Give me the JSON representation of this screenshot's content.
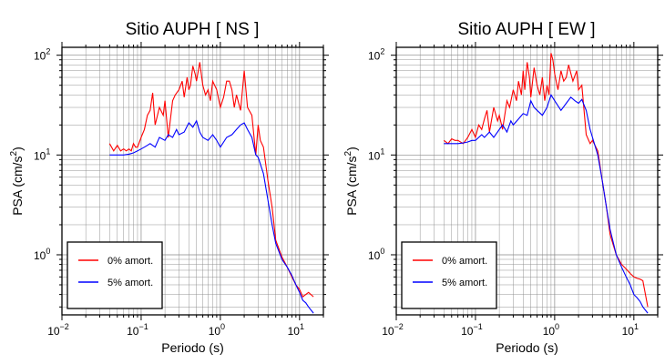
{
  "colors": {
    "series_0": "#ff0000",
    "series_5": "#0000ff",
    "grid": "#888888",
    "frame": "#000000"
  },
  "chart_data": [
    {
      "type": "line",
      "title": "Sitio AUPH [ NS ]",
      "xlabel": "Periodo (s)",
      "ylabel_main": "PSA (cm/s",
      "ylabel_sup": "2",
      "ylabel_close": ")",
      "xscale": "log",
      "yscale": "log",
      "xlim": [
        0.01,
        20
      ],
      "ylim": [
        0.25,
        120
      ],
      "grid": true,
      "legend_position": "bottom-left",
      "x_ticks": [
        {
          "value": 0.01,
          "base": "10",
          "exp": "−2"
        },
        {
          "value": 0.1,
          "base": "10",
          "exp": "−1"
        },
        {
          "value": 1,
          "base": "10",
          "exp": "0"
        },
        {
          "value": 10,
          "base": "10",
          "exp": "1"
        }
      ],
      "y_ticks": [
        {
          "value": 1,
          "base": "10",
          "exp": "0"
        },
        {
          "value": 10,
          "base": "10",
          "exp": "1"
        },
        {
          "value": 100,
          "base": "10",
          "exp": "2"
        }
      ],
      "series": [
        {
          "name": "0% amort.",
          "x": [
            0.04,
            0.045,
            0.05,
            0.055,
            0.06,
            0.065,
            0.07,
            0.075,
            0.08,
            0.085,
            0.09,
            0.1,
            0.11,
            0.12,
            0.13,
            0.14,
            0.15,
            0.17,
            0.19,
            0.2,
            0.22,
            0.25,
            0.27,
            0.3,
            0.33,
            0.35,
            0.38,
            0.4,
            0.42,
            0.45,
            0.48,
            0.5,
            0.55,
            0.6,
            0.65,
            0.7,
            0.75,
            0.8,
            0.9,
            1.0,
            1.1,
            1.2,
            1.3,
            1.4,
            1.5,
            1.6,
            1.8,
            2.0,
            2.2,
            2.5,
            2.8,
            3.0,
            3.2,
            3.5,
            4.0,
            4.5,
            5.0,
            6.0,
            7.0,
            8.0,
            9.0,
            10.0,
            11.0,
            12.0,
            13.0,
            15.0
          ],
          "y": [
            13,
            11,
            12.5,
            11,
            11.5,
            11,
            11.5,
            11,
            13,
            12,
            12,
            15,
            18,
            25,
            28,
            42,
            20,
            30,
            25,
            35,
            15,
            35,
            40,
            45,
            55,
            38,
            60,
            45,
            50,
            78,
            65,
            55,
            85,
            50,
            40,
            45,
            35,
            55,
            45,
            30,
            38,
            55,
            55,
            45,
            30,
            40,
            28,
            70,
            30,
            25,
            10,
            20,
            14,
            12,
            5.5,
            3,
            1.4,
            0.95,
            0.75,
            0.6,
            0.5,
            0.45,
            0.38,
            0.4,
            0.42,
            0.38
          ]
        },
        {
          "name": "5% amort.",
          "x": [
            0.04,
            0.05,
            0.06,
            0.07,
            0.08,
            0.09,
            0.1,
            0.11,
            0.12,
            0.13,
            0.15,
            0.17,
            0.2,
            0.22,
            0.25,
            0.28,
            0.3,
            0.35,
            0.4,
            0.45,
            0.5,
            0.55,
            0.6,
            0.7,
            0.8,
            0.9,
            1.0,
            1.2,
            1.4,
            1.6,
            1.8,
            2.0,
            2.2,
            2.5,
            2.8,
            3.0,
            3.5,
            4.0,
            4.5,
            5.0,
            6.0,
            7.0,
            8.0,
            9.0,
            10.0,
            11.0,
            12.0,
            13.0,
            15.0
          ],
          "y": [
            10,
            10,
            10,
            10.2,
            10.5,
            11,
            11.5,
            12,
            12.5,
            13,
            12,
            15,
            14,
            16,
            15,
            18,
            16,
            17,
            21,
            19,
            22,
            17,
            15,
            14,
            16,
            14,
            12,
            15,
            16,
            18,
            20,
            21,
            18,
            15,
            10,
            9.5,
            6.5,
            3.5,
            2.0,
            1.3,
            0.9,
            0.75,
            0.62,
            0.5,
            0.42,
            0.35,
            0.33,
            0.3,
            0.26
          ]
        }
      ]
    },
    {
      "type": "line",
      "title": "Sitio AUPH [ EW ]",
      "xlabel": "Periodo (s)",
      "ylabel_main": "PSA (cm/s",
      "ylabel_sup": "2",
      "ylabel_close": ")",
      "xscale": "log",
      "yscale": "log",
      "xlim": [
        0.01,
        20
      ],
      "ylim": [
        0.25,
        120
      ],
      "grid": true,
      "legend_position": "bottom-left",
      "x_ticks": [
        {
          "value": 0.01,
          "base": "10",
          "exp": "−2"
        },
        {
          "value": 0.1,
          "base": "10",
          "exp": "−1"
        },
        {
          "value": 1,
          "base": "10",
          "exp": "0"
        },
        {
          "value": 10,
          "base": "10",
          "exp": "1"
        }
      ],
      "y_ticks": [
        {
          "value": 1,
          "base": "10",
          "exp": "0"
        },
        {
          "value": 10,
          "base": "10",
          "exp": "1"
        },
        {
          "value": 100,
          "base": "10",
          "exp": "2"
        }
      ],
      "series": [
        {
          "name": "0% amort.",
          "x": [
            0.04,
            0.045,
            0.05,
            0.055,
            0.06,
            0.07,
            0.08,
            0.09,
            0.1,
            0.11,
            0.12,
            0.13,
            0.14,
            0.15,
            0.17,
            0.19,
            0.2,
            0.22,
            0.25,
            0.27,
            0.3,
            0.33,
            0.35,
            0.38,
            0.4,
            0.42,
            0.45,
            0.48,
            0.5,
            0.55,
            0.6,
            0.65,
            0.7,
            0.75,
            0.8,
            0.85,
            0.9,
            0.95,
            1.0,
            1.1,
            1.2,
            1.3,
            1.4,
            1.5,
            1.7,
            1.9,
            2.0,
            2.2,
            2.5,
            2.8,
            3.0,
            3.5,
            4.0,
            4.5,
            5.0,
            6.0,
            7.0,
            8.0,
            9.0,
            10.0,
            11.0,
            12.0,
            13.0,
            15.0
          ],
          "y": [
            14,
            13,
            14.5,
            14,
            14,
            13,
            15,
            18,
            15,
            20,
            18,
            23,
            28,
            17,
            30,
            22,
            25,
            18,
            35,
            30,
            45,
            35,
            55,
            40,
            70,
            45,
            85,
            60,
            38,
            75,
            50,
            40,
            60,
            35,
            50,
            40,
            105,
            90,
            65,
            45,
            70,
            55,
            60,
            80,
            55,
            70,
            45,
            50,
            16,
            13,
            14,
            11,
            5.5,
            3,
            1.6,
            1.0,
            0.8,
            0.72,
            0.65,
            0.6,
            0.58,
            0.57,
            0.55,
            0.3
          ]
        },
        {
          "name": "5% amort.",
          "x": [
            0.04,
            0.05,
            0.06,
            0.07,
            0.08,
            0.09,
            0.1,
            0.11,
            0.12,
            0.13,
            0.15,
            0.17,
            0.2,
            0.22,
            0.25,
            0.28,
            0.3,
            0.35,
            0.4,
            0.45,
            0.5,
            0.55,
            0.6,
            0.7,
            0.8,
            0.9,
            1.0,
            1.2,
            1.4,
            1.6,
            1.8,
            2.0,
            2.2,
            2.5,
            2.8,
            3.0,
            3.5,
            4.0,
            4.5,
            5.0,
            6.0,
            7.0,
            8.0,
            9.0,
            10.0,
            11.0,
            12.0,
            13.0,
            15.0
          ],
          "y": [
            13,
            13,
            13,
            13.2,
            13.5,
            14,
            14,
            15,
            16,
            15,
            17,
            15,
            18,
            20,
            17,
            22,
            20,
            23,
            26,
            25,
            35,
            30,
            28,
            25,
            30,
            40,
            35,
            28,
            33,
            38,
            35,
            33,
            36,
            28,
            18,
            15,
            10,
            5.5,
            3,
            1.8,
            1.0,
            0.75,
            0.6,
            0.5,
            0.4,
            0.37,
            0.34,
            0.3,
            0.26
          ]
        }
      ]
    }
  ]
}
